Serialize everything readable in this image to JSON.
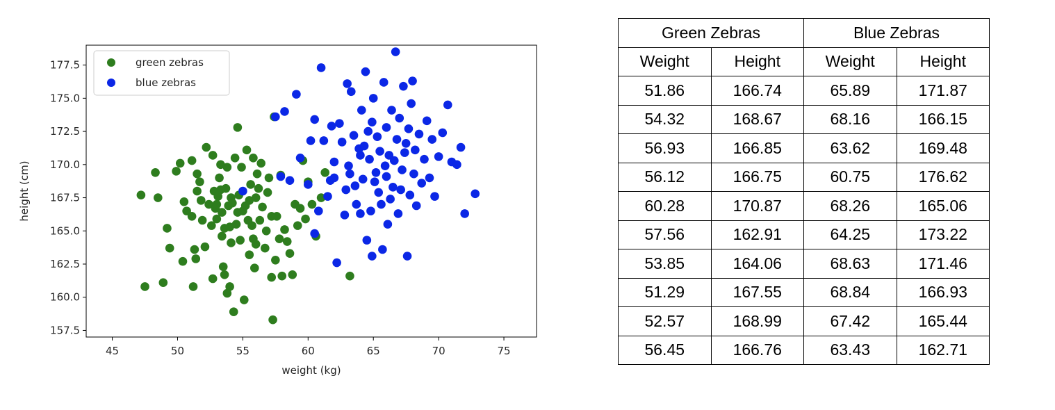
{
  "chart_data": [
    {
      "type": "scatter",
      "xlabel": "weight (kg)",
      "ylabel": "height (cm)",
      "xlim": [
        43,
        77.5
      ],
      "ylim": [
        157,
        179
      ],
      "xticks": [
        45,
        50,
        55,
        60,
        65,
        70,
        75
      ],
      "yticks": [
        157.5,
        160.0,
        162.5,
        165.0,
        167.5,
        170.0,
        172.5,
        175.0,
        177.5
      ],
      "legend_position": "top-left",
      "grid": false,
      "series": [
        {
          "name": "green zebras",
          "color": "#2e7d1e",
          "points": [
            [
              47.2,
              167.7
            ],
            [
              47.5,
              160.8
            ],
            [
              48.3,
              169.4
            ],
            [
              48.5,
              167.5
            ],
            [
              48.9,
              161.1
            ],
            [
              49.2,
              165.2
            ],
            [
              49.4,
              163.7
            ],
            [
              49.9,
              169.5
            ],
            [
              50.2,
              170.1
            ],
            [
              50.4,
              162.7
            ],
            [
              50.5,
              167.2
            ],
            [
              50.7,
              166.5
            ],
            [
              51.1,
              166.1
            ],
            [
              51.1,
              170.3
            ],
            [
              51.2,
              160.8
            ],
            [
              51.3,
              163.6
            ],
            [
              51.4,
              162.9
            ],
            [
              51.5,
              169.3
            ],
            [
              51.7,
              168.7
            ],
            [
              51.8,
              167.3
            ],
            [
              51.9,
              165.8
            ],
            [
              52.1,
              163.8
            ],
            [
              52.2,
              171.3
            ],
            [
              52.4,
              167.0
            ],
            [
              52.6,
              165.4
            ],
            [
              52.7,
              161.4
            ],
            [
              52.7,
              170.7
            ],
            [
              52.8,
              168.0
            ],
            [
              52.9,
              166.7
            ],
            [
              53.0,
              165.9
            ],
            [
              53.1,
              167.6
            ],
            [
              53.2,
              169.0
            ],
            [
              53.3,
              168.1
            ],
            [
              53.4,
              166.4
            ],
            [
              53.4,
              164.6
            ],
            [
              53.5,
              162.3
            ],
            [
              53.6,
              165.2
            ],
            [
              53.6,
              161.7
            ],
            [
              53.7,
              168.2
            ],
            [
              53.8,
              160.3
            ],
            [
              53.8,
              169.8
            ],
            [
              53.9,
              166.9
            ],
            [
              54.0,
              160.8
            ],
            [
              54.1,
              167.5
            ],
            [
              54.1,
              164.1
            ],
            [
              54.2,
              167.1
            ],
            [
              54.3,
              158.9
            ],
            [
              54.4,
              170.5
            ],
            [
              54.5,
              165.5
            ],
            [
              54.6,
              166.4
            ],
            [
              54.7,
              167.7
            ],
            [
              54.8,
              164.3
            ],
            [
              54.9,
              169.8
            ],
            [
              55.0,
              166.5
            ],
            [
              55.1,
              159.8
            ],
            [
              55.2,
              166.9
            ],
            [
              55.3,
              171.1
            ],
            [
              55.4,
              165.8
            ],
            [
              55.5,
              163.2
            ],
            [
              55.6,
              168.5
            ],
            [
              55.7,
              165.4
            ],
            [
              55.8,
              164.4
            ],
            [
              55.8,
              170.5
            ],
            [
              55.9,
              162.2
            ],
            [
              56.0,
              167.5
            ],
            [
              56.1,
              169.3
            ],
            [
              56.2,
              168.2
            ],
            [
              56.3,
              165.8
            ],
            [
              56.4,
              170.1
            ],
            [
              56.5,
              166.8
            ],
            [
              56.7,
              163.7
            ],
            [
              56.8,
              165.0
            ],
            [
              56.9,
              167.9
            ],
            [
              57.0,
              169.0
            ],
            [
              57.2,
              161.5
            ],
            [
              57.2,
              166.1
            ],
            [
              57.3,
              158.3
            ],
            [
              57.4,
              173.6
            ],
            [
              57.5,
              162.8
            ],
            [
              57.6,
              166.1
            ],
            [
              57.8,
              164.4
            ],
            [
              57.9,
              169.2
            ],
            [
              58.0,
              161.6
            ],
            [
              58.2,
              165.1
            ],
            [
              58.4,
              164.2
            ],
            [
              58.6,
              163.3
            ],
            [
              58.8,
              161.7
            ],
            [
              59.0,
              167.0
            ],
            [
              59.2,
              165.4
            ],
            [
              59.4,
              166.7
            ],
            [
              59.6,
              170.3
            ],
            [
              59.8,
              165.9
            ],
            [
              60.0,
              168.7
            ],
            [
              60.3,
              167.0
            ],
            [
              60.6,
              164.6
            ],
            [
              61.0,
              167.5
            ],
            [
              61.3,
              169.4
            ],
            [
              63.2,
              161.6
            ],
            [
              53.0,
              167.0
            ],
            [
              54.0,
              165.3
            ],
            [
              55.5,
              167.3
            ],
            [
              56.0,
              164.0
            ],
            [
              54.6,
              172.8
            ],
            [
              51.5,
              168.0
            ],
            [
              53.3,
              170.0
            ]
          ]
        },
        {
          "name": "blue zebras",
          "color": "#0b27e6",
          "points": [
            [
              55.0,
              168.0
            ],
            [
              57.5,
              173.6
            ],
            [
              57.9,
              169.1
            ],
            [
              58.2,
              174.0
            ],
            [
              58.6,
              168.8
            ],
            [
              59.1,
              175.3
            ],
            [
              59.4,
              170.5
            ],
            [
              60.0,
              168.5
            ],
            [
              60.5,
              164.8
            ],
            [
              60.5,
              173.4
            ],
            [
              60.8,
              166.5
            ],
            [
              61.0,
              177.3
            ],
            [
              61.2,
              171.8
            ],
            [
              61.5,
              167.6
            ],
            [
              61.7,
              168.8
            ],
            [
              62.0,
              170.2
            ],
            [
              62.2,
              162.6
            ],
            [
              62.4,
              173.1
            ],
            [
              62.6,
              171.7
            ],
            [
              62.9,
              168.1
            ],
            [
              63.0,
              176.1
            ],
            [
              63.2,
              169.3
            ],
            [
              63.3,
              175.5
            ],
            [
              63.5,
              172.2
            ],
            [
              63.7,
              167.0
            ],
            [
              63.9,
              171.2
            ],
            [
              64.0,
              166.3
            ],
            [
              64.1,
              174.1
            ],
            [
              64.2,
              168.9
            ],
            [
              64.4,
              177.0
            ],
            [
              64.5,
              164.3
            ],
            [
              64.6,
              172.5
            ],
            [
              64.7,
              170.4
            ],
            [
              64.8,
              166.5
            ],
            [
              64.9,
              163.1
            ],
            [
              65.0,
              175.0
            ],
            [
              65.2,
              169.4
            ],
            [
              65.3,
              172.1
            ],
            [
              65.4,
              167.9
            ],
            [
              65.5,
              171.0
            ],
            [
              65.7,
              163.6
            ],
            [
              65.8,
              176.2
            ],
            [
              65.9,
              169.9
            ],
            [
              66.0,
              172.8
            ],
            [
              66.1,
              165.5
            ],
            [
              66.2,
              170.7
            ],
            [
              66.4,
              174.1
            ],
            [
              66.5,
              168.3
            ],
            [
              66.7,
              178.5
            ],
            [
              66.8,
              171.9
            ],
            [
              66.9,
              166.3
            ],
            [
              67.0,
              173.5
            ],
            [
              67.2,
              169.6
            ],
            [
              67.3,
              175.9
            ],
            [
              67.4,
              170.9
            ],
            [
              67.6,
              163.1
            ],
            [
              67.7,
              172.7
            ],
            [
              67.8,
              167.7
            ],
            [
              67.9,
              174.6
            ],
            [
              68.0,
              176.3
            ],
            [
              68.2,
              171.1
            ],
            [
              68.3,
              166.9
            ],
            [
              68.5,
              172.3
            ],
            [
              68.7,
              168.6
            ],
            [
              68.9,
              170.4
            ],
            [
              69.1,
              173.3
            ],
            [
              69.3,
              169.0
            ],
            [
              69.5,
              171.9
            ],
            [
              69.7,
              167.6
            ],
            [
              70.0,
              170.6
            ],
            [
              70.3,
              172.4
            ],
            [
              70.7,
              174.5
            ],
            [
              71.0,
              170.2
            ],
            [
              71.4,
              170.0
            ],
            [
              71.7,
              171.3
            ],
            [
              72.0,
              166.3
            ],
            [
              72.8,
              167.8
            ],
            [
              62.0,
              169.0
            ],
            [
              63.1,
              169.9
            ],
            [
              64.0,
              170.7
            ],
            [
              65.1,
              168.7
            ],
            [
              66.0,
              169.1
            ],
            [
              67.1,
              168.1
            ],
            [
              64.3,
              171.4
            ],
            [
              65.6,
              167.0
            ],
            [
              62.8,
              166.2
            ],
            [
              63.6,
              168.4
            ],
            [
              66.6,
              170.3
            ],
            [
              68.1,
              169.3
            ],
            [
              60.2,
              171.8
            ],
            [
              61.8,
              172.9
            ],
            [
              64.9,
              173.2
            ],
            [
              66.3,
              167.4
            ],
            [
              67.5,
              171.6
            ]
          ]
        }
      ]
    },
    {
      "type": "table",
      "group_headers": [
        "Green Zebras",
        "Blue Zebras"
      ],
      "column_headers": [
        "Weight",
        "Height",
        "Weight",
        "Height"
      ],
      "rows": [
        [
          "51.86",
          "166.74",
          "65.89",
          "171.87"
        ],
        [
          "54.32",
          "168.67",
          "68.16",
          "166.15"
        ],
        [
          "56.93",
          "166.85",
          "63.62",
          "169.48"
        ],
        [
          "56.12",
          "166.75",
          "60.75",
          "176.62"
        ],
        [
          "60.28",
          "170.87",
          "68.26",
          "165.06"
        ],
        [
          "57.56",
          "162.91",
          "64.25",
          "173.22"
        ],
        [
          "53.85",
          "164.06",
          "68.63",
          "171.46"
        ],
        [
          "51.29",
          "167.55",
          "68.84",
          "166.93"
        ],
        [
          "52.57",
          "168.99",
          "67.42",
          "165.44"
        ],
        [
          "56.45",
          "166.76",
          "63.43",
          "162.71"
        ]
      ]
    }
  ]
}
